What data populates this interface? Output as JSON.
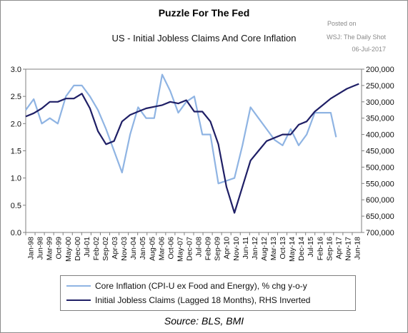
{
  "chart_data": {
    "type": "line",
    "title": "Puzzle For The Fed",
    "subtitle": "US - Initial Jobless Claims And Core Inflation",
    "watermark": [
      "Posted on",
      "WSJ: The Daily Shot",
      "06-Jul-2017"
    ],
    "source": "Source: BLS, BMI",
    "y_left": {
      "ticks": [
        "0.0",
        "0.5",
        "1.0",
        "1.5",
        "2.0",
        "2.5",
        "3.0"
      ],
      "ylim": [
        0,
        3
      ]
    },
    "y_right": {
      "ticks": [
        "200,000",
        "250,000",
        "300,000",
        "350,000",
        "400,000",
        "450,000",
        "500,000",
        "550,000",
        "600,000",
        "650,000",
        "700,000"
      ],
      "ylim": [
        700000,
        200000
      ],
      "inverted": true
    },
    "x_ticks": [
      "Jan-98",
      "Jun-98",
      "Mar-99",
      "Oct-99",
      "May-00",
      "Dec-00",
      "Jul-01",
      "Feb-02",
      "Sep-02",
      "Apr-03",
      "Nov-03",
      "Jun-04",
      "Jan-05",
      "Aug-05",
      "Mar-06",
      "Oct-06",
      "May-07",
      "Dec-07",
      "Jul-08",
      "Feb-09",
      "Sep-09",
      "Apr-10",
      "Nov-10",
      "Jun-11",
      "Jan-12",
      "Aug-12",
      "Mar-13",
      "Oct-13",
      "May-14",
      "Dec-14",
      "Jul-15",
      "Feb-16",
      "Sep-16",
      "Apr-17",
      "Nov-17",
      "Jun-18"
    ],
    "series": [
      {
        "name": "Core Inflation (CPI-U  ex Food and Energy), % chg y-o-y",
        "axis": "left",
        "color": "#8fb4e3",
        "x": [
          "Jan-98",
          "Jul-98",
          "Jan-99",
          "Jul-99",
          "Jan-00",
          "Jul-00",
          "Jan-01",
          "Jul-01",
          "Jan-02",
          "Jul-02",
          "Jan-03",
          "Jul-03",
          "Jan-04",
          "Jul-04",
          "Jan-05",
          "Jul-05",
          "Jan-06",
          "Jul-06",
          "Jan-07",
          "Jul-07",
          "Jan-08",
          "Jul-08",
          "Jan-09",
          "Jul-09",
          "Jan-10",
          "Jul-10",
          "Jan-11",
          "Jul-11",
          "Jan-12",
          "Jul-12",
          "Jan-13",
          "Jul-13",
          "Jan-14",
          "Jul-14",
          "Jan-15",
          "Jul-15",
          "Jan-16",
          "Jul-16",
          "Jan-17",
          "May-17"
        ],
        "values": [
          2.25,
          2.45,
          2.0,
          2.1,
          2.0,
          2.5,
          2.7,
          2.7,
          2.5,
          2.25,
          1.9,
          1.5,
          1.1,
          1.8,
          2.3,
          2.1,
          2.1,
          2.9,
          2.6,
          2.2,
          2.4,
          2.5,
          1.8,
          1.8,
          0.9,
          0.95,
          1.0,
          1.6,
          2.3,
          2.1,
          1.9,
          1.7,
          1.6,
          1.9,
          1.6,
          1.8,
          2.2,
          2.2,
          2.2,
          1.75
        ]
      },
      {
        "name": "Initial Jobless Claims (Lagged 18 Months), RHS Inverted",
        "axis": "right",
        "color": "#1f1f66",
        "x": [
          "Jan-98",
          "Jul-98",
          "Jan-99",
          "Jul-99",
          "Jan-00",
          "Jul-00",
          "Jan-01",
          "Jul-01",
          "Jan-02",
          "Jul-02",
          "Jan-03",
          "Jul-03",
          "Jan-04",
          "Jul-04",
          "Jan-05",
          "Jul-05",
          "Jan-06",
          "Jul-06",
          "Jan-07",
          "Jul-07",
          "Jan-08",
          "Jul-08",
          "Jan-09",
          "Jul-09",
          "Jan-10",
          "Jul-10",
          "Jan-11",
          "Jul-11",
          "Jan-12",
          "Jul-12",
          "Jan-13",
          "Jul-13",
          "Jan-14",
          "Jul-14",
          "Jan-15",
          "Jul-15",
          "Jan-16",
          "Jul-16",
          "Jan-17",
          "Jul-17",
          "Jan-18",
          "Jul-18",
          "Oct-18"
        ],
        "values": [
          345000,
          335000,
          320000,
          300000,
          300000,
          290000,
          290000,
          275000,
          320000,
          390000,
          430000,
          420000,
          360000,
          340000,
          330000,
          320000,
          315000,
          310000,
          300000,
          305000,
          295000,
          330000,
          330000,
          360000,
          430000,
          560000,
          640000,
          560000,
          480000,
          450000,
          420000,
          410000,
          400000,
          400000,
          370000,
          360000,
          330000,
          310000,
          290000,
          275000,
          260000,
          250000,
          245000
        ]
      }
    ]
  }
}
